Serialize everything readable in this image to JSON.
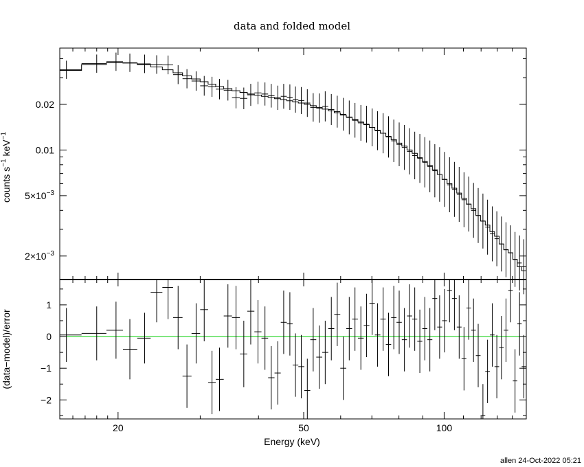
{
  "chart_data": [
    {
      "type": "scatter",
      "panel": "top",
      "title": "data and folded model",
      "xlabel": "",
      "ylabel_parts": [
        "counts s",
        "−1",
        " keV",
        "−1"
      ],
      "xscale": "log",
      "yscale": "log",
      "xlim": [
        15,
        150
      ],
      "ylim": [
        0.0014,
        0.047
      ],
      "y_ticks": [
        {
          "value": 0.02,
          "label": "0.02",
          "label_parts": [
            "0.02"
          ]
        },
        {
          "value": 0.01,
          "label": "0.01",
          "label_parts": [
            "0.01"
          ]
        },
        {
          "value": 0.005,
          "label": "5×10−3",
          "label_parts": [
            "5×10",
            "−3"
          ]
        },
        {
          "value": 0.002,
          "label": "2×10−3",
          "label_parts": [
            "2×10",
            "−3"
          ]
        }
      ],
      "series": [
        {
          "kind": "data",
          "x": [
            15.5,
            18.0,
            19.8,
            21.2,
            22.8,
            24.2,
            25.6,
            26.9,
            28.1,
            29.4,
            30.6,
            31.8,
            33.0,
            34.4,
            35.8,
            37.2,
            38.5,
            39.9,
            41.3,
            42.6,
            44.0,
            45.3,
            46.7,
            48.0,
            49.4,
            50.9,
            52.4,
            54.0,
            55.6,
            57.3,
            59.0,
            60.8,
            62.6,
            64.4,
            66.3,
            68.2,
            70.1,
            72.0,
            74.0,
            76.0,
            78.0,
            80.1,
            82.2,
            84.3,
            86.5,
            88.7,
            90.9,
            93.2,
            95.5,
            97.8,
            100.2,
            102.7,
            105.2,
            107.7,
            110.3,
            112.9,
            115.6,
            118.3,
            121.1,
            123.9,
            126.8,
            129.7,
            132.7,
            135.7,
            138.8,
            141.9,
            145.1,
            148.2
          ],
          "y": [
            0.0338,
            0.0371,
            0.0382,
            0.0376,
            0.037,
            0.0366,
            0.0364,
            0.0314,
            0.0295,
            0.0285,
            0.0265,
            0.0261,
            0.0252,
            0.0248,
            0.0221,
            0.0219,
            0.0231,
            0.0238,
            0.0234,
            0.0228,
            0.0221,
            0.0226,
            0.0223,
            0.0215,
            0.0212,
            0.0204,
            0.0191,
            0.0189,
            0.0194,
            0.0185,
            0.0179,
            0.0172,
            0.0164,
            0.0157,
            0.0151,
            0.0148,
            0.0141,
            0.0134,
            0.0129,
            0.0122,
            0.0115,
            0.0109,
            0.0104,
            0.0098,
            0.0092,
            0.0088,
            0.0083,
            0.0078,
            0.0073,
            0.0069,
            0.0064,
            0.0059,
            0.0055,
            0.0051,
            0.0047,
            0.0044,
            0.004,
            0.0037,
            0.0034,
            0.0031,
            0.0028,
            0.0026,
            0.0024,
            0.0022,
            0.0021,
            0.0019,
            0.0018,
            0.0017
          ]
        },
        {
          "kind": "model",
          "x": [
            15.5,
            18.0,
            19.8,
            21.2,
            22.8,
            24.2,
            25.6,
            26.9,
            28.1,
            29.4,
            30.6,
            31.8,
            33.0,
            34.4,
            35.8,
            37.2,
            38.5,
            39.9,
            41.3,
            42.6,
            44.0,
            45.3,
            46.7,
            48.0,
            49.4,
            50.9,
            52.4,
            54.0,
            55.6,
            57.3,
            59.0,
            60.8,
            62.6,
            64.4,
            66.3,
            68.2,
            70.1,
            72.0,
            74.0,
            76.0,
            78.0,
            80.1,
            82.2,
            84.3,
            86.5,
            88.7,
            90.9,
            93.2,
            95.5,
            97.8,
            100.2,
            102.7,
            105.2,
            107.7,
            110.3,
            112.9,
            115.6,
            118.3,
            121.1,
            123.9,
            126.8,
            129.7,
            132.7,
            135.7,
            138.8,
            141.9,
            145.1,
            148.2
          ],
          "y": [
            0.0335,
            0.0366,
            0.0376,
            0.0374,
            0.0366,
            0.0353,
            0.0338,
            0.0323,
            0.0308,
            0.0294,
            0.0282,
            0.0272,
            0.0262,
            0.0254,
            0.0246,
            0.024,
            0.0234,
            0.023,
            0.0226,
            0.0222,
            0.0218,
            0.0215,
            0.0211,
            0.0208,
            0.0204,
            0.02,
            0.0196,
            0.0191,
            0.0186,
            0.0181,
            0.0176,
            0.017,
            0.0165,
            0.0159,
            0.0153,
            0.0147,
            0.0141,
            0.0135,
            0.0129,
            0.0123,
            0.0117,
            0.0111,
            0.0106,
            0.01,
            0.0095,
            0.0089,
            0.0084,
            0.0079,
            0.0074,
            0.0069,
            0.0064,
            0.006,
            0.0056,
            0.0052,
            0.0048,
            0.0044,
            0.0041,
            0.0037,
            0.0034,
            0.0032,
            0.0029,
            0.0027,
            0.0024,
            0.0022,
            0.0021,
            0.0019,
            0.0017,
            0.0016
          ]
        }
      ]
    },
    {
      "type": "scatter",
      "panel": "bottom",
      "xlabel": "Energy (keV)",
      "ylabel": "(data−model)/error",
      "xscale": "log",
      "xlim": [
        15,
        150
      ],
      "ylim": [
        -2.6,
        1.8
      ],
      "x_ticks": [
        {
          "value": 20,
          "label": "20"
        },
        {
          "value": 50,
          "label": "50"
        },
        {
          "value": 100,
          "label": "100"
        }
      ],
      "y_ticks": [
        {
          "value": 1,
          "label": "1"
        },
        {
          "value": 0,
          "label": "0"
        },
        {
          "value": -1,
          "label": "−1"
        },
        {
          "value": -2,
          "label": "−2"
        }
      ],
      "zero_line_color": "#00cc00",
      "series": [
        {
          "kind": "residuals",
          "x": [
            15.5,
            18.0,
            19.8,
            21.2,
            22.8,
            24.2,
            25.6,
            26.9,
            28.1,
            29.4,
            30.6,
            31.8,
            33.0,
            34.4,
            35.8,
            37.2,
            38.5,
            39.9,
            41.3,
            42.6,
            44.0,
            45.3,
            46.7,
            48.0,
            49.4,
            50.9,
            52.4,
            54.0,
            55.6,
            57.3,
            59.0,
            60.8,
            62.6,
            64.4,
            66.3,
            68.2,
            70.1,
            72.0,
            74.0,
            76.0,
            78.0,
            80.1,
            82.2,
            84.3,
            86.5,
            88.7,
            90.9,
            93.2,
            95.5,
            97.8,
            100.2,
            102.7,
            105.2,
            107.7,
            110.3,
            112.9,
            115.6,
            118.3,
            121.1,
            123.9,
            126.8,
            129.7,
            132.7,
            135.7,
            138.8,
            141.9,
            145.1,
            148.2
          ],
          "y": [
            0.05,
            0.1,
            0.2,
            -0.4,
            -0.05,
            1.4,
            1.55,
            0.6,
            -1.25,
            0.1,
            0.85,
            -1.45,
            -1.35,
            0.65,
            0.6,
            -0.55,
            0.8,
            0.15,
            -0.05,
            -1.3,
            -1.15,
            0.45,
            0.4,
            -0.9,
            -0.95,
            -1.7,
            -0.1,
            -0.65,
            -0.5,
            0.25,
            0.7,
            -1.0,
            0.25,
            0.55,
            -0.05,
            0.35,
            1.05,
            0.05,
            0.55,
            -0.25,
            0.6,
            0.45,
            -0.1,
            0.65,
            0.55,
            -0.15,
            0.25,
            -0.1,
            1.2,
            0.3,
            0.5,
            1.45,
            1.2,
            0.3,
            -0.7,
            0.9,
            0.2,
            -0.6,
            -2.5,
            -1.1,
            0.05,
            -0.95,
            -0.35,
            0.2,
            1.45,
            -1.4,
            0.4,
            -0.95
          ],
          "err": [
            0.85,
            0.85,
            0.9,
            0.95,
            0.8,
            0.95,
            1.0,
            1.0,
            1.0,
            0.95,
            1.0,
            1.0,
            1.0,
            1.0,
            1.0,
            1.05,
            1.05,
            1.0,
            1.0,
            1.0,
            1.0,
            1.0,
            1.0,
            1.0,
            1.0,
            1.0,
            1.0,
            1.0,
            1.0,
            1.0,
            1.0,
            1.0,
            1.0,
            1.0,
            1.0,
            1.0,
            1.0,
            1.0,
            1.0,
            1.0,
            1.0,
            1.0,
            1.0,
            1.0,
            1.0,
            1.0,
            1.0,
            1.0,
            1.0,
            1.0,
            1.0,
            1.0,
            1.0,
            1.0,
            1.0,
            1.0,
            1.0,
            1.0,
            1.0,
            1.0,
            1.0,
            1.0,
            1.0,
            1.0,
            1.0,
            1.0,
            1.0,
            1.0
          ]
        }
      ]
    }
  ],
  "footer": "allen 24-Oct-2022 05:21"
}
